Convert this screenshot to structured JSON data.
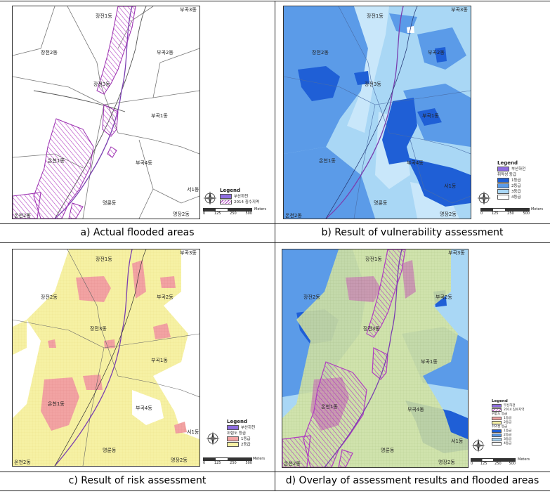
{
  "panels": {
    "a": {
      "caption": "a) Actual flooded areas",
      "labels": {
        "jangjeon1": "장전1동",
        "bugok3": "부곡3동",
        "jangjeon2": "장전2동",
        "bugok2": "부곡2동",
        "jangjeon3": "장전3동",
        "bugok1": "부곡1동",
        "oncheon1": "온천1동",
        "bugok4": "부곡4동",
        "seo1": "서1동",
        "myeongryun": "명륜동",
        "oncheon2": "온천2동",
        "myeongjang2": "명장2동"
      },
      "legend": {
        "title": "Legend",
        "items": [
          "부산하천",
          "2014 침수지역"
        ]
      },
      "scale": {
        "ticks": [
          "0",
          "125",
          "250",
          "500"
        ],
        "unit": "Meters"
      }
    },
    "b": {
      "caption": "b) Result of vulnerability assessment",
      "labels": {
        "jangjeon1": "장전1동",
        "bugok3": "부곡3동",
        "jangjeon2": "장전2동",
        "bugok2": "부곡2동",
        "jangjeon3": "장전3동",
        "bugok1": "부곡1동",
        "oncheon1": "온천1동",
        "bugok4": "부곡4동",
        "seo1": "서1동",
        "myeongryun": "명륜동",
        "oncheon2": "온천2동",
        "myeongjang2": "명장2동"
      },
      "legend": {
        "title": "Legend",
        "items": [
          "부산하천",
          "취약성 등급",
          "1등급",
          "2등급",
          "3등급",
          "4등급"
        ]
      },
      "scale": {
        "ticks": [
          "0",
          "125",
          "250",
          "500"
        ],
        "unit": "Meters"
      }
    },
    "c": {
      "caption": "c) Result of risk assessment",
      "labels": {
        "jangjeon1": "장전1동",
        "bugok3": "부곡3동",
        "jangjeon2": "장전2동",
        "bugok2": "부곡2동",
        "jangjeon3": "장전3동",
        "bugok1": "부곡1동",
        "oncheon1": "온천1동",
        "bugok4": "부곡4동",
        "seo1": "서1동",
        "myeongryun": "명륜동",
        "oncheon2": "온천2동",
        "myeongjang2": "명장2동"
      },
      "legend": {
        "title": "Legend",
        "items": [
          "부산하천",
          "위험도 등급",
          "1등급",
          "2등급"
        ]
      },
      "scale": {
        "ticks": [
          "0",
          "125",
          "250",
          "500"
        ],
        "unit": "Meters"
      }
    },
    "d": {
      "caption": "d) Overlay of assessment results and flooded areas",
      "labels": {
        "jangjeon1": "장전1동",
        "bugok3": "부곡3동",
        "jangjeon2": "장전2동",
        "bugok2": "부곡2동",
        "jangjeon3": "장전3동",
        "bugok1": "부곡1동",
        "oncheon1": "온천1동",
        "bugok4": "부곡4동",
        "seo1": "서1동",
        "myeongryun": "명륜동",
        "oncheon2": "온천2동",
        "myeongjang2": "명장2동"
      },
      "legend": {
        "title": "Legend",
        "items": [
          "부산하천",
          "2014 침수지역",
          "위험도 등급",
          "1등급",
          "2등급",
          "취약성 등급",
          "1등급",
          "2등급",
          "3등급",
          "4등급"
        ]
      },
      "scale": {
        "ticks": [
          "0",
          "125",
          "250",
          "500"
        ],
        "unit": "Meters"
      }
    }
  },
  "colors": {
    "flood_hatch": "#b03cc0",
    "river": "#7a3fb0",
    "vuln_1": "#1f5fd6",
    "vuln_2": "#5b9be8",
    "vuln_3": "#a9d7f5",
    "vuln_4": "#ffffff",
    "risk_1": "#f2a3a3",
    "risk_2": "#f6f1a4"
  }
}
